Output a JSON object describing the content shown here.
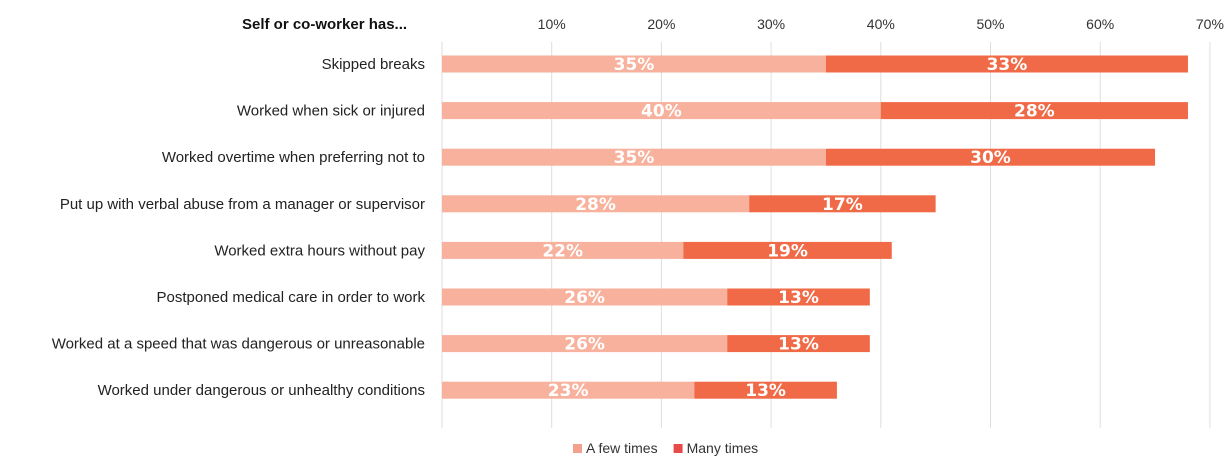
{
  "chart_data": {
    "type": "bar",
    "orientation": "horizontal",
    "stacked": true,
    "title": "",
    "header_label": "Self or co-worker has...",
    "xlim": [
      0,
      70
    ],
    "ticks": [
      10,
      20,
      30,
      40,
      50,
      60,
      70
    ],
    "tick_labels": [
      "10%",
      "20%",
      "30%",
      "40%",
      "50%",
      "60%",
      "70%"
    ],
    "grid": true,
    "legend_position": "bottom",
    "categories": [
      "Skipped breaks",
      "Worked when sick or injured",
      "Worked overtime when preferring not to",
      "Put up with verbal abuse from a manager or supervisor",
      "Worked extra hours without pay",
      "Postponed medical care in order to work",
      "Worked at a speed that was dangerous or unreasonable",
      "Worked under dangerous or unhealthy conditions"
    ],
    "series": [
      {
        "name": "A few times",
        "color": "#f7b19c",
        "values": [
          35,
          40,
          35,
          28,
          22,
          26,
          26,
          23
        ],
        "labels": [
          "35%",
          "40%",
          "35%",
          "28%",
          "22%",
          "26%",
          "26%",
          "23%"
        ]
      },
      {
        "name": "Many times",
        "color": "#f06a47",
        "values": [
          33,
          28,
          30,
          17,
          19,
          13,
          13,
          13
        ],
        "labels": [
          "33%",
          "28%",
          "30%",
          "17%",
          "19%",
          "13%",
          "13%",
          "13%"
        ]
      }
    ],
    "legend_colors": [
      "#f4a08e",
      "#e84a4a"
    ]
  }
}
